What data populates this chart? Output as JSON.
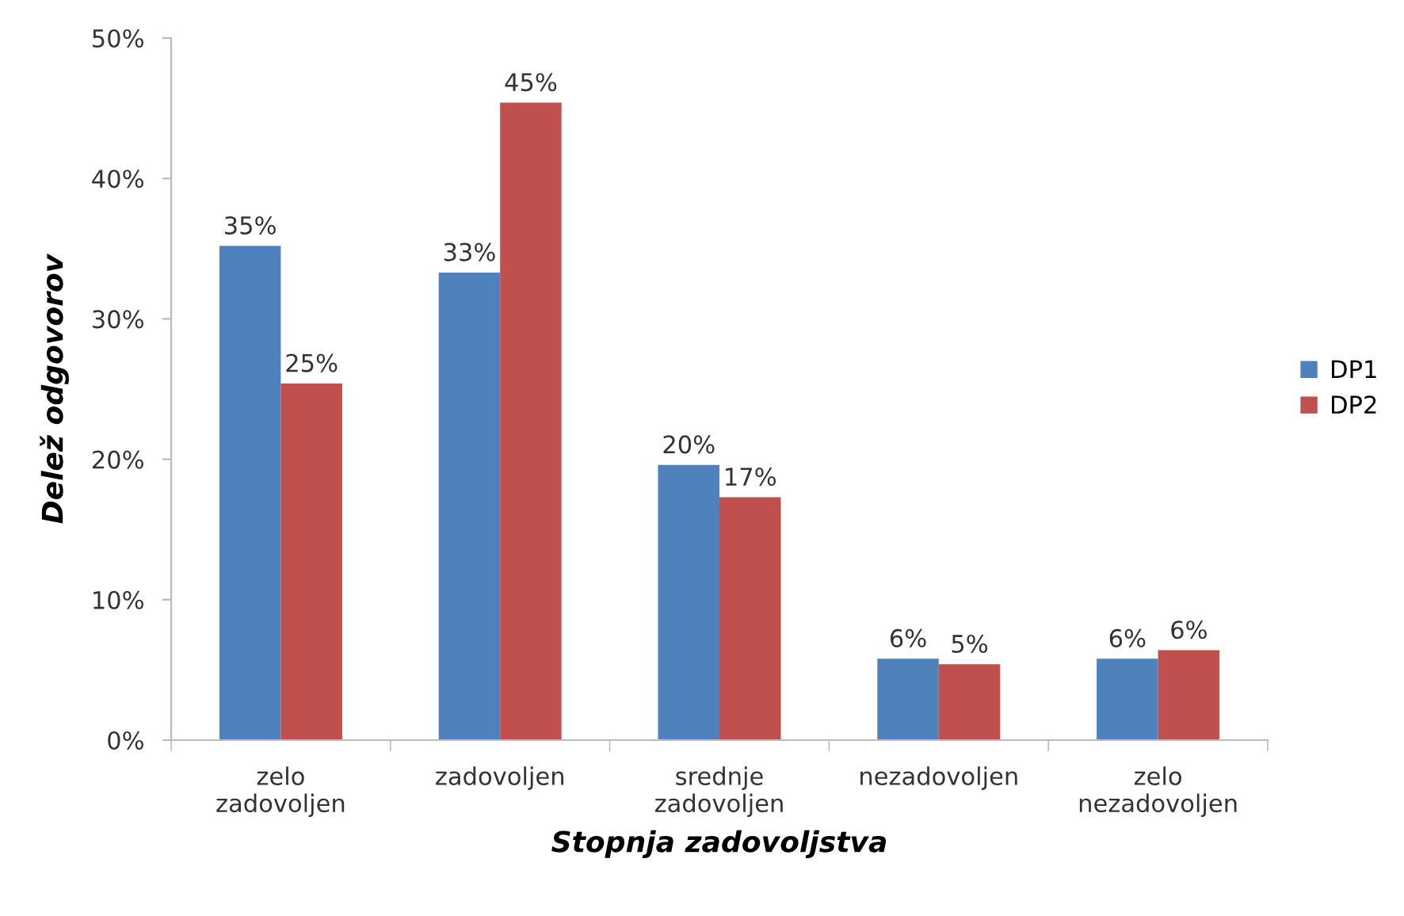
{
  "chart_data": {
    "type": "bar",
    "xlabel": "Stopnja zadovoljstva",
    "ylabel": "Delež odgovorov",
    "categories": [
      "zelo\nzadovoljen",
      "zadovoljen",
      "srednje\nzadovoljen",
      "nezadovoljen",
      "zelo\nnezadovoljen"
    ],
    "series": [
      {
        "name": "DP1",
        "color": "#4f81bd",
        "values": [
          35.2,
          33.3,
          19.6,
          5.8,
          5.8
        ],
        "value_labels": [
          "35%",
          "33%",
          "20%",
          "6%",
          "6%"
        ]
      },
      {
        "name": "DP2",
        "color": "#c0504d",
        "values": [
          25.4,
          45.4,
          17.3,
          5.4,
          6.4
        ],
        "value_labels": [
          "25%",
          "45%",
          "17%",
          "5%",
          "6%"
        ]
      }
    ],
    "ylim": [
      0,
      50
    ],
    "yticks": [
      {
        "value": 0,
        "label": "0%"
      },
      {
        "value": 10,
        "label": "10%"
      },
      {
        "value": 20,
        "label": "20%"
      },
      {
        "value": 30,
        "label": "30%"
      },
      {
        "value": 40,
        "label": "40%"
      },
      {
        "value": 50,
        "label": "50%"
      }
    ],
    "grid": false,
    "legend": "right"
  }
}
